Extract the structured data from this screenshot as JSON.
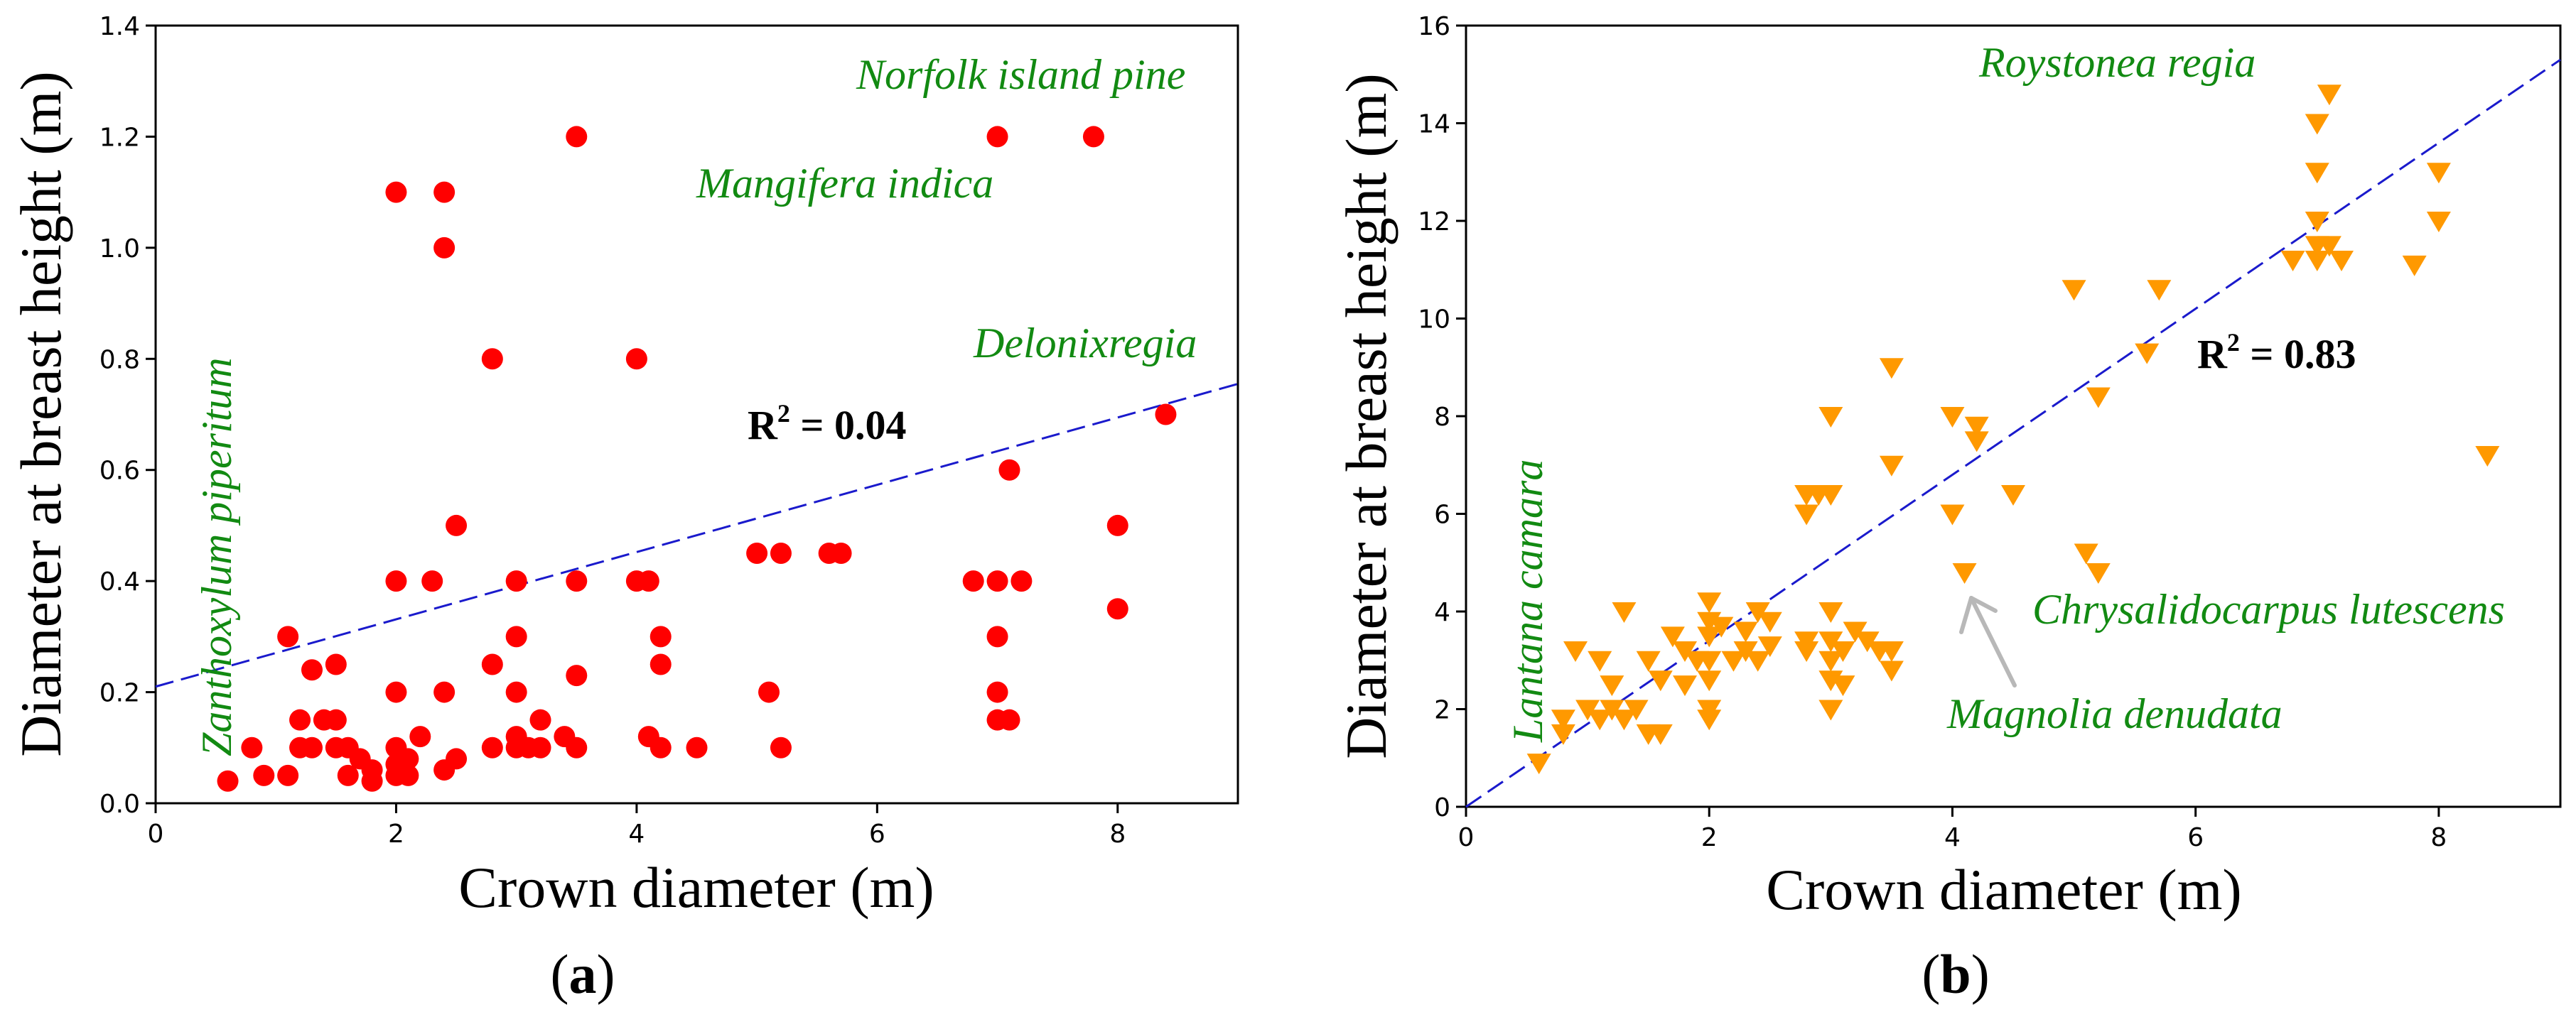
{
  "chart_data": [
    {
      "type": "scatter",
      "panel_label": "a",
      "xlabel": "Crown diameter (m)",
      "ylabel": "Diameter at breast height (m)",
      "xlim": [
        0,
        9
      ],
      "ylim": [
        0,
        1.4
      ],
      "xticks": [
        "0",
        "2",
        "4",
        "6",
        "8"
      ],
      "yticks": [
        "0.0",
        "0.2",
        "0.4",
        "0.6",
        "0.8",
        "1.0",
        "1.2",
        "1.4"
      ],
      "marker": "circle",
      "color": "#ff0000",
      "fit": {
        "style": "dashed",
        "color": "#1a1acc",
        "x": [
          0,
          9
        ],
        "y": [
          0.21,
          0.755
        ]
      },
      "r2": {
        "label": "R",
        "exponent": "2",
        "value": " = 0.04"
      },
      "annotations": [
        "Norfolk island pine",
        "Mangifera indica",
        "Delonixregia",
        "Zanthoxylum piperitum"
      ],
      "points": [
        [
          0.6,
          0.04
        ],
        [
          0.8,
          0.1
        ],
        [
          0.9,
          0.05
        ],
        [
          1.1,
          0.05
        ],
        [
          1.1,
          0.3
        ],
        [
          1.2,
          0.1
        ],
        [
          1.2,
          0.15
        ],
        [
          1.3,
          0.24
        ],
        [
          1.3,
          0.1
        ],
        [
          1.4,
          0.15
        ],
        [
          1.5,
          0.15
        ],
        [
          1.5,
          0.25
        ],
        [
          1.5,
          0.1
        ],
        [
          1.6,
          0.1
        ],
        [
          1.6,
          0.05
        ],
        [
          1.7,
          0.08
        ],
        [
          1.8,
          0.06
        ],
        [
          1.8,
          0.04
        ],
        [
          2.0,
          0.1
        ],
        [
          2.0,
          0.07
        ],
        [
          2.0,
          0.05
        ],
        [
          2.0,
          0.2
        ],
        [
          2.0,
          0.4
        ],
        [
          2.0,
          1.1
        ],
        [
          2.1,
          0.05
        ],
        [
          2.1,
          0.08
        ],
        [
          2.2,
          0.12
        ],
        [
          2.3,
          0.4
        ],
        [
          2.4,
          0.06
        ],
        [
          2.4,
          0.2
        ],
        [
          2.4,
          1.1
        ],
        [
          2.4,
          1.0
        ],
        [
          2.5,
          0.08
        ],
        [
          2.5,
          0.5
        ],
        [
          2.8,
          0.8
        ],
        [
          2.8,
          0.1
        ],
        [
          2.8,
          0.25
        ],
        [
          3.0,
          0.12
        ],
        [
          3.0,
          0.1
        ],
        [
          3.0,
          0.2
        ],
        [
          3.0,
          0.3
        ],
        [
          3.0,
          0.4
        ],
        [
          3.1,
          0.1
        ],
        [
          3.2,
          0.15
        ],
        [
          3.2,
          0.1
        ],
        [
          3.4,
          0.12
        ],
        [
          3.5,
          0.1
        ],
        [
          3.5,
          0.23
        ],
        [
          3.5,
          0.4
        ],
        [
          3.5,
          1.2
        ],
        [
          4.0,
          0.4
        ],
        [
          4.0,
          0.8
        ],
        [
          4.1,
          0.12
        ],
        [
          4.1,
          0.4
        ],
        [
          4.2,
          0.1
        ],
        [
          4.2,
          0.25
        ],
        [
          4.2,
          0.3
        ],
        [
          4.5,
          0.1
        ],
        [
          5.0,
          0.45
        ],
        [
          5.1,
          0.2
        ],
        [
          5.2,
          0.45
        ],
        [
          5.2,
          0.1
        ],
        [
          5.6,
          0.45
        ],
        [
          5.7,
          0.45
        ],
        [
          6.8,
          0.4
        ],
        [
          7.0,
          0.4
        ],
        [
          7.0,
          0.3
        ],
        [
          7.0,
          0.2
        ],
        [
          7.0,
          0.15
        ],
        [
          7.0,
          1.2
        ],
        [
          7.1,
          0.6
        ],
        [
          7.1,
          0.15
        ],
        [
          7.2,
          0.4
        ],
        [
          7.8,
          1.2
        ],
        [
          8.0,
          0.5
        ],
        [
          8.0,
          0.35
        ],
        [
          8.4,
          0.7
        ]
      ]
    },
    {
      "type": "scatter",
      "panel_label": "b",
      "xlabel": "Crown diameter (m)",
      "ylabel": "Diameter at breast height (m)",
      "xlim": [
        0,
        9
      ],
      "ylim": [
        0,
        16
      ],
      "xticks": [
        "0",
        "2",
        "4",
        "6",
        "8"
      ],
      "yticks": [
        "0",
        "2",
        "4",
        "6",
        "8",
        "10",
        "12",
        "14",
        "16"
      ],
      "marker": "triangle-down",
      "color": "#ff9900",
      "fit": {
        "style": "dashed",
        "color": "#1a1acc",
        "x": [
          0,
          9
        ],
        "y": [
          0.0,
          15.3
        ]
      },
      "r2": {
        "label": "R",
        "exponent": "2",
        "value": " = 0.83"
      },
      "annotations": [
        "Roystonea regia",
        "Lantana camara",
        "Chrysalidocarpus lutescens",
        "Magnolia denudata"
      ],
      "points": [
        [
          0.6,
          0.9
        ],
        [
          0.8,
          1.5
        ],
        [
          0.8,
          1.8
        ],
        [
          0.9,
          3.2
        ],
        [
          1.0,
          2.0
        ],
        [
          1.1,
          1.8
        ],
        [
          1.1,
          3.0
        ],
        [
          1.2,
          2.0
        ],
        [
          1.2,
          2.5
        ],
        [
          1.3,
          1.8
        ],
        [
          1.3,
          4.0
        ],
        [
          1.4,
          2.0
        ],
        [
          1.5,
          1.5
        ],
        [
          1.5,
          3.0
        ],
        [
          1.6,
          1.5
        ],
        [
          1.6,
          2.6
        ],
        [
          1.7,
          3.5
        ],
        [
          1.8,
          2.5
        ],
        [
          1.8,
          3.2
        ],
        [
          1.9,
          3.0
        ],
        [
          2.0,
          1.8
        ],
        [
          2.0,
          2.0
        ],
        [
          2.0,
          2.6
        ],
        [
          2.0,
          3.0
        ],
        [
          2.0,
          3.5
        ],
        [
          2.0,
          3.8
        ],
        [
          2.0,
          4.2
        ],
        [
          2.1,
          3.7
        ],
        [
          2.2,
          3.0
        ],
        [
          2.3,
          3.2
        ],
        [
          2.3,
          3.6
        ],
        [
          2.4,
          3.0
        ],
        [
          2.4,
          4.0
        ],
        [
          2.5,
          3.3
        ],
        [
          2.5,
          3.8
        ],
        [
          2.8,
          3.2
        ],
        [
          2.8,
          3.4
        ],
        [
          2.8,
          6.0
        ],
        [
          2.8,
          6.4
        ],
        [
          2.9,
          6.4
        ],
        [
          3.0,
          2.0
        ],
        [
          3.0,
          2.6
        ],
        [
          3.0,
          3.0
        ],
        [
          3.0,
          3.4
        ],
        [
          3.0,
          4.0
        ],
        [
          3.0,
          6.4
        ],
        [
          3.0,
          8.0
        ],
        [
          3.1,
          2.5
        ],
        [
          3.1,
          3.2
        ],
        [
          3.2,
          3.6
        ],
        [
          3.3,
          3.4
        ],
        [
          3.4,
          3.2
        ],
        [
          3.5,
          2.8
        ],
        [
          3.5,
          3.2
        ],
        [
          3.5,
          7.0
        ],
        [
          3.5,
          9.0
        ],
        [
          4.0,
          6.0
        ],
        [
          4.0,
          8.0
        ],
        [
          4.1,
          4.8
        ],
        [
          4.2,
          7.5
        ],
        [
          4.2,
          7.8
        ],
        [
          4.5,
          6.4
        ],
        [
          5.0,
          10.6
        ],
        [
          5.1,
          5.2
        ],
        [
          5.2,
          4.8
        ],
        [
          5.2,
          8.4
        ],
        [
          5.6,
          9.3
        ],
        [
          5.7,
          10.6
        ],
        [
          6.8,
          11.2
        ],
        [
          7.0,
          11.2
        ],
        [
          7.0,
          11.5
        ],
        [
          7.0,
          12.0
        ],
        [
          7.0,
          13.0
        ],
        [
          7.0,
          14.0
        ],
        [
          7.1,
          11.5
        ],
        [
          7.1,
          14.6
        ],
        [
          7.2,
          11.2
        ],
        [
          7.8,
          11.1
        ],
        [
          8.0,
          12.0
        ],
        [
          8.0,
          13.0
        ],
        [
          8.4,
          7.2
        ]
      ]
    }
  ]
}
